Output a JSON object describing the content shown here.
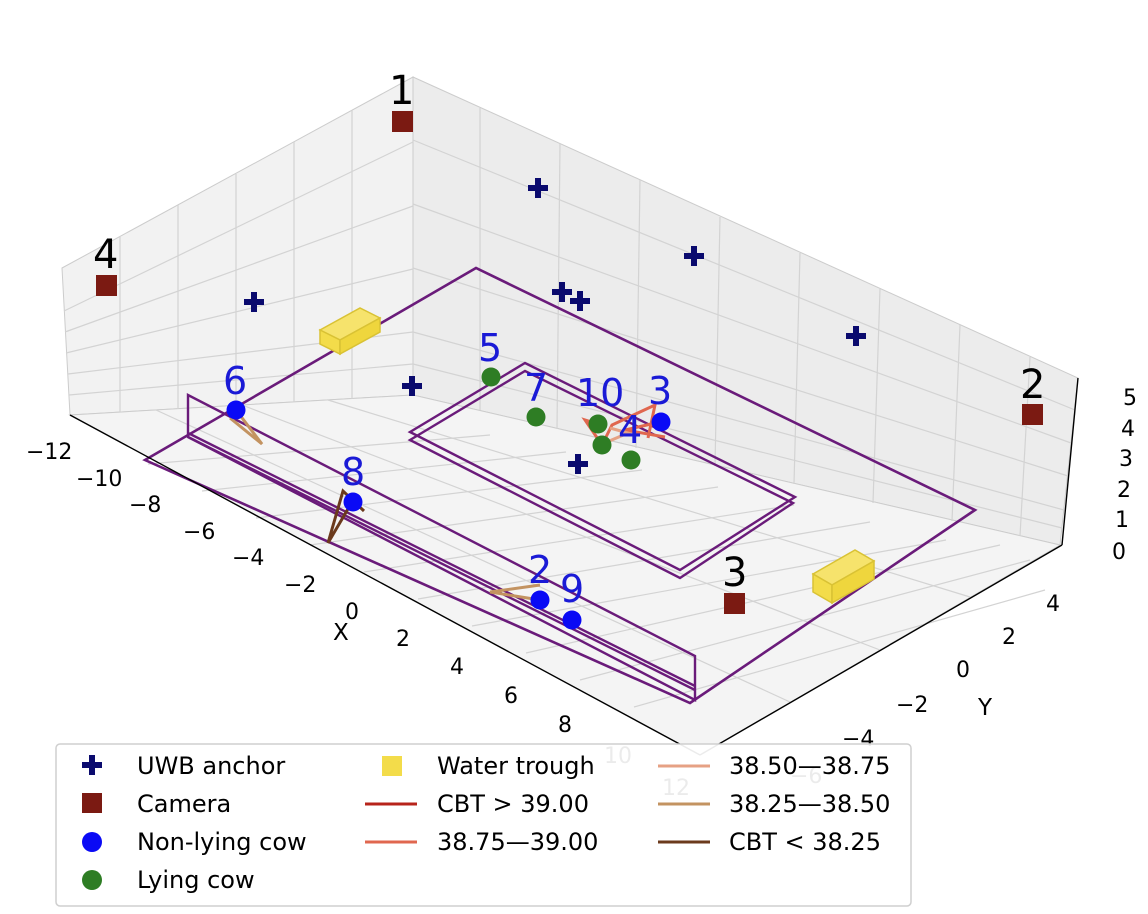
{
  "chart_data": {
    "type": "scatter3d",
    "axes": {
      "x": {
        "label": "X",
        "ticks": [
          "−12",
          "−10",
          "−8",
          "−6",
          "−4",
          "−2",
          "0",
          "2",
          "4",
          "6",
          "8",
          "10",
          "12"
        ]
      },
      "y": {
        "label": "Y",
        "ticks": [
          "−6",
          "−4",
          "−2",
          "0",
          "2",
          "4"
        ]
      },
      "z": {
        "label": "",
        "ticks": [
          "0",
          "1",
          "2",
          "3",
          "4",
          "5"
        ]
      }
    },
    "grid": true,
    "legend": {
      "placement": "bottom",
      "entries": [
        {
          "label": "UWB anchor",
          "marker": "plus",
          "color": "#0a0a6e"
        },
        {
          "label": "Camera",
          "marker": "square",
          "color": "#7b1a12"
        },
        {
          "label": "Non-lying cow",
          "marker": "circle",
          "color": "#0a0af5"
        },
        {
          "label": "Lying cow",
          "marker": "circle",
          "color": "#2e7d24"
        },
        {
          "label": "Water trough",
          "marker": "square",
          "color": "#f3dc4a"
        },
        {
          "label": "CBT > 39.00",
          "marker": "line",
          "color": "#b7241b"
        },
        {
          "label": "38.75—39.00",
          "marker": "line",
          "color": "#e0674f"
        },
        {
          "label": "38.50—38.75",
          "marker": "line",
          "color": "#e6a184"
        },
        {
          "label": "38.25—38.50",
          "marker": "line",
          "color": "#c39361"
        },
        {
          "label": "CBT < 38.25",
          "marker": "line",
          "color": "#6b3a1c"
        }
      ]
    },
    "cameras": [
      {
        "label": "1",
        "x": -12,
        "y": 6,
        "z": 5
      },
      {
        "label": "2",
        "x": 12,
        "y": -6,
        "z": 5
      },
      {
        "label": "3",
        "x": 9,
        "y": -3,
        "z": 0
      },
      {
        "label": "4",
        "x": -12,
        "y": -6,
        "z": 5
      }
    ],
    "cows": [
      {
        "label": "2",
        "state": "non-lying",
        "x": 3,
        "y": -2.5
      },
      {
        "label": "3",
        "state": "non-lying",
        "x": 4,
        "y": 2
      },
      {
        "label": "4",
        "state": "lying",
        "x": 3,
        "y": 1
      },
      {
        "label": "5",
        "state": "lying",
        "x": -3,
        "y": 2
      },
      {
        "label": "6",
        "state": "non-lying",
        "x": -9,
        "y": -2
      },
      {
        "label": "7",
        "state": "lying",
        "x": -1,
        "y": 1
      },
      {
        "label": "8",
        "state": "non-lying",
        "x": -5,
        "y": -4
      },
      {
        "label": "9",
        "state": "non-lying",
        "x": 4,
        "y": -3
      },
      {
        "label": "10",
        "state": "lying",
        "x": 2,
        "y": 1.5
      }
    ],
    "colors": {
      "grid": "#d6d6d6",
      "pane": "#f2f2f2",
      "pen": "#6a1b7a",
      "anchor": "#0a0a6e",
      "camera": "#7b1a12",
      "nonlying": "#0a0af5",
      "lying": "#2e7d24",
      "trough": "#f3dc4a",
      "cowlabel": "#1a1ad6"
    }
  }
}
